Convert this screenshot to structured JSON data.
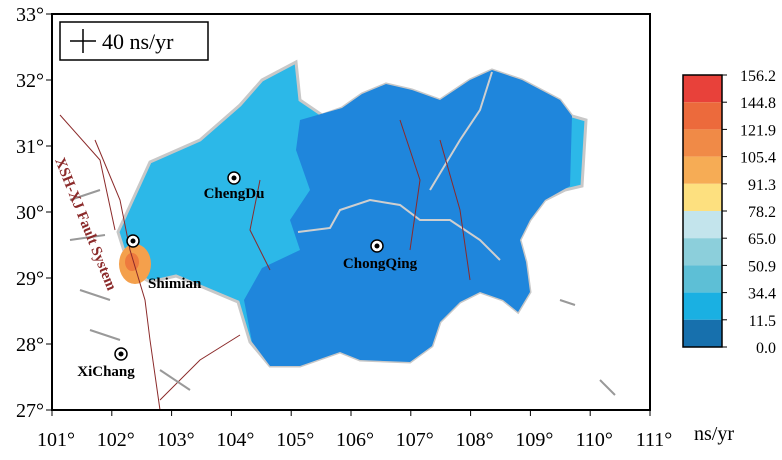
{
  "map": {
    "x_ticks": [
      "101°",
      "102°",
      "103°",
      "104°",
      "105°",
      "106°",
      "107°",
      "108°",
      "109°",
      "110°",
      "111°"
    ],
    "y_ticks": [
      "33°",
      "32°",
      "31°",
      "30°",
      "29°",
      "28°",
      "27°"
    ],
    "scale_legend": "40 ns/yr",
    "places": [
      "ChengDu",
      "ChongQing",
      "Shimian",
      "XiChang"
    ],
    "fault_label": "XSH-XJ Fault System"
  },
  "colorbar": {
    "labels": [
      "156.2",
      "144.8",
      "121.9",
      "105.4",
      "91.3",
      "78.2",
      "65.0",
      "50.9",
      "34.4",
      "11.5",
      "0.0"
    ],
    "colors": [
      "#e8413a",
      "#ec6a3c",
      "#f08a47",
      "#f6ac55",
      "#fde07f",
      "#c3e4ec",
      "#8ccfdb",
      "#5dbfd6",
      "#1ab0e2",
      "#1770ad"
    ],
    "unit": "ns/yr"
  }
}
